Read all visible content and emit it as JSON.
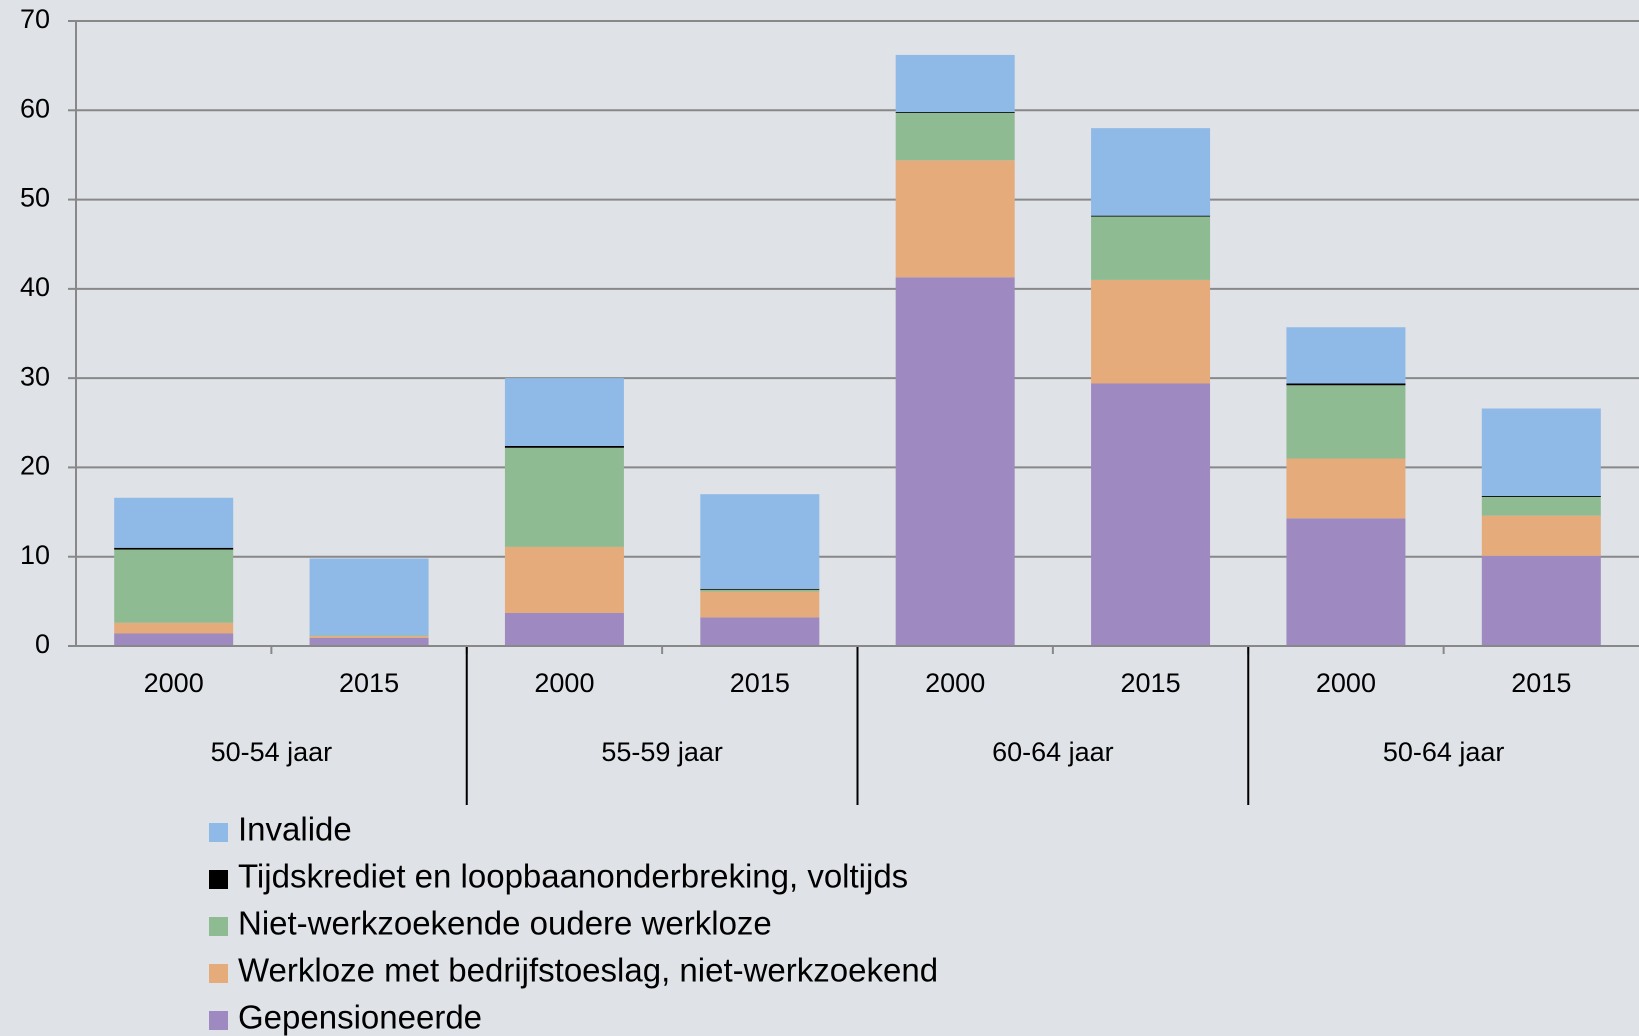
{
  "chart_data": {
    "type": "stacked_bar",
    "categories": [
      "2000",
      "2015",
      "2000",
      "2015",
      "2000",
      "2015",
      "2000",
      "2015"
    ],
    "groups": [
      "50-54 jaar",
      "55-59 jaar",
      "60-64 jaar",
      "50-64 jaar"
    ],
    "series": [
      {
        "name": "Gepensioneerde",
        "color": "#9e8ac0",
        "values": [
          1.4,
          0.9,
          3.7,
          3.2,
          41.3,
          29.4,
          14.3,
          10.1
        ]
      },
      {
        "name": "Werkloze met bedrijfstoeslag, niet-werkzoekend",
        "color": "#e5ab7b",
        "values": [
          1.2,
          0.2,
          7.4,
          2.9,
          13.1,
          11.6,
          6.7,
          4.5
        ]
      },
      {
        "name": "Niet-werkzoekende oudere werkloze",
        "color": "#8fbb93",
        "values": [
          8.2,
          0.1,
          11.1,
          0.2,
          5.3,
          7.1,
          8.2,
          2.1
        ]
      },
      {
        "name": "Tijdskrediet en loopbaanonderbreking, voltijds",
        "color": "#000000",
        "values": [
          0.2,
          0,
          0.2,
          0.1,
          0.1,
          0.1,
          0.2,
          0.1
        ]
      },
      {
        "name": "Invalide",
        "color": "#8fb9e6",
        "values": [
          5.6,
          8.6,
          7.6,
          10.6,
          6.4,
          9.8,
          6.3,
          9.8
        ]
      }
    ],
    "ylim": [
      0,
      70
    ],
    "yticks": [
      0,
      10,
      20,
      30,
      40,
      50,
      60,
      70
    ],
    "grid": true
  }
}
